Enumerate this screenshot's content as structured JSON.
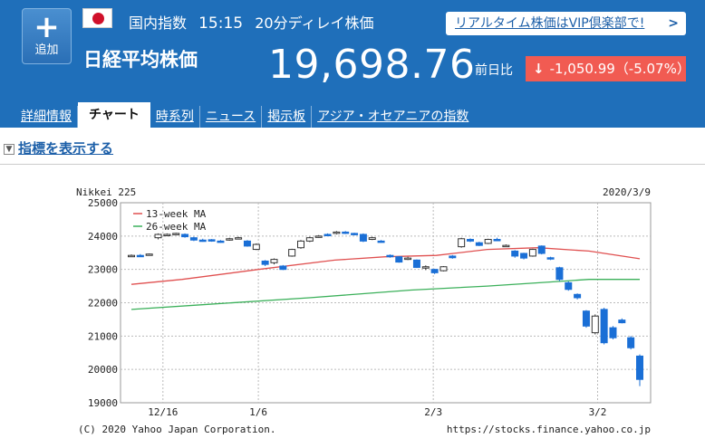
{
  "header": {
    "add_button_label": "追加",
    "category": "国内指数",
    "time": "15:15",
    "delay": "20分ディレイ株価",
    "vip_link": "リアルタイム株価はVIP倶楽部で!",
    "index_name": "日経平均株価",
    "price": "19,698.76",
    "prev_label": "前日比",
    "change_arrow": "↓",
    "change": "-1,050.99（-5.07%）"
  },
  "tabs": [
    {
      "label": "詳細情報",
      "active": false
    },
    {
      "label": "チャート",
      "active": true
    },
    {
      "label": "時系列",
      "active": false
    },
    {
      "label": "ニュース",
      "active": false
    },
    {
      "label": "掲示板",
      "active": false
    },
    {
      "label": "アジア・オセアニアの指数",
      "active": false
    }
  ],
  "indicator_link": "指標を表示する",
  "colors": {
    "header_bg": "#1f6fba",
    "down": "#f15b52",
    "candle_down": "#1a6fd6",
    "ma13": "#e05050",
    "ma26": "#3bb05a"
  },
  "chart_data": {
    "type": "candlestick",
    "title": "Nikkei 225",
    "date": "2020/3/9",
    "ylim": [
      19000,
      25000
    ],
    "y_ticks": [
      "25000",
      "24000",
      "23000",
      "22000",
      "21000",
      "20000",
      "19000"
    ],
    "x_ticks": [
      "12/16",
      "1/6",
      "2/3",
      "3/2"
    ],
    "legend": [
      "13-week MA",
      "26-week MA"
    ],
    "copyright": "(C) 2020 Yahoo Japan Corporation.",
    "source": "https://stocks.finance.yahoo.co.jp",
    "candles": [
      [
        23400,
        23420,
        23450,
        23380
      ],
      [
        23420,
        23400,
        23460,
        23380
      ],
      [
        23440,
        23460,
        23480,
        23420
      ],
      [
        23950,
        24050,
        24080,
        23900
      ],
      [
        24050,
        24050,
        24080,
        24000
      ],
      [
        24060,
        24080,
        24100,
        24040
      ],
      [
        24050,
        23980,
        24080,
        23950
      ],
      [
        23950,
        23880,
        23980,
        23850
      ],
      [
        23880,
        23850,
        23920,
        23830
      ],
      [
        23890,
        23860,
        23910,
        23830
      ],
      [
        23850,
        23830,
        23880,
        23800
      ],
      [
        23880,
        23920,
        23950,
        23860
      ],
      [
        23920,
        23950,
        23980,
        23900
      ],
      [
        23850,
        23700,
        23880,
        23680
      ],
      [
        23600,
        23750,
        23780,
        23580
      ],
      [
        23250,
        23150,
        23280,
        23100
      ],
      [
        23200,
        23300,
        23330,
        23150
      ],
      [
        23100,
        23000,
        23130,
        22980
      ],
      [
        23400,
        23600,
        23620,
        23380
      ],
      [
        23650,
        23850,
        23880,
        23620
      ],
      [
        23850,
        23950,
        23980,
        23820
      ],
      [
        23980,
        24000,
        24030,
        23950
      ],
      [
        24050,
        24020,
        24080,
        24000
      ],
      [
        24080,
        24120,
        24150,
        24050
      ],
      [
        24120,
        24080,
        24150,
        24060
      ],
      [
        24080,
        24050,
        24100,
        24020
      ],
      [
        24050,
        23850,
        24080,
        23820
      ],
      [
        23900,
        23950,
        23980,
        23880
      ],
      [
        23850,
        23820,
        23880,
        23800
      ],
      [
        23420,
        23380,
        23450,
        23350
      ],
      [
        23380,
        23220,
        23400,
        23200
      ],
      [
        23300,
        23340,
        23380,
        23280
      ],
      [
        23280,
        23060,
        23300,
        23040
      ],
      [
        23050,
        23080,
        23120,
        22980
      ],
      [
        23000,
        22900,
        23020,
        22860
      ],
      [
        22960,
        23080,
        23100,
        22940
      ],
      [
        23400,
        23350,
        23430,
        23320
      ],
      [
        23680,
        23920,
        23950,
        23650
      ],
      [
        23900,
        23850,
        23930,
        23820
      ],
      [
        23800,
        23720,
        23830,
        23700
      ],
      [
        23780,
        23900,
        23920,
        23760
      ],
      [
        23900,
        23880,
        23950,
        23850
      ],
      [
        23700,
        23720,
        23750,
        23680
      ],
      [
        23550,
        23400,
        23580,
        23350
      ],
      [
        23480,
        23340,
        23500,
        23300
      ],
      [
        23400,
        23600,
        23620,
        23380
      ],
      [
        23700,
        23480,
        23720,
        23450
      ],
      [
        23350,
        23320,
        23380,
        23280
      ],
      [
        23050,
        22700,
        23080,
        22650
      ],
      [
        22600,
        22400,
        22640,
        22360
      ],
      [
        22250,
        22150,
        22280,
        22100
      ],
      [
        21750,
        21300,
        21780,
        21250
      ],
      [
        21100,
        21600,
        21650,
        21050
      ],
      [
        21800,
        20800,
        21850,
        20750
      ],
      [
        21250,
        20950,
        21300,
        20900
      ],
      [
        21480,
        21400,
        21530,
        21380
      ],
      [
        20950,
        20650,
        21000,
        20600
      ],
      [
        20400,
        19700,
        20450,
        19500
      ]
    ],
    "ma13": [
      [
        0,
        22550
      ],
      [
        0.1,
        22700
      ],
      [
        0.25,
        23000
      ],
      [
        0.4,
        23280
      ],
      [
        0.5,
        23380
      ],
      [
        0.6,
        23420
      ],
      [
        0.7,
        23600
      ],
      [
        0.8,
        23650
      ],
      [
        0.9,
        23550
      ],
      [
        1.0,
        23320
      ]
    ],
    "ma26": [
      [
        0,
        21800
      ],
      [
        0.15,
        21950
      ],
      [
        0.35,
        22150
      ],
      [
        0.55,
        22380
      ],
      [
        0.7,
        22500
      ],
      [
        0.85,
        22650
      ],
      [
        0.9,
        22700
      ],
      [
        1.0,
        22700
      ]
    ]
  }
}
